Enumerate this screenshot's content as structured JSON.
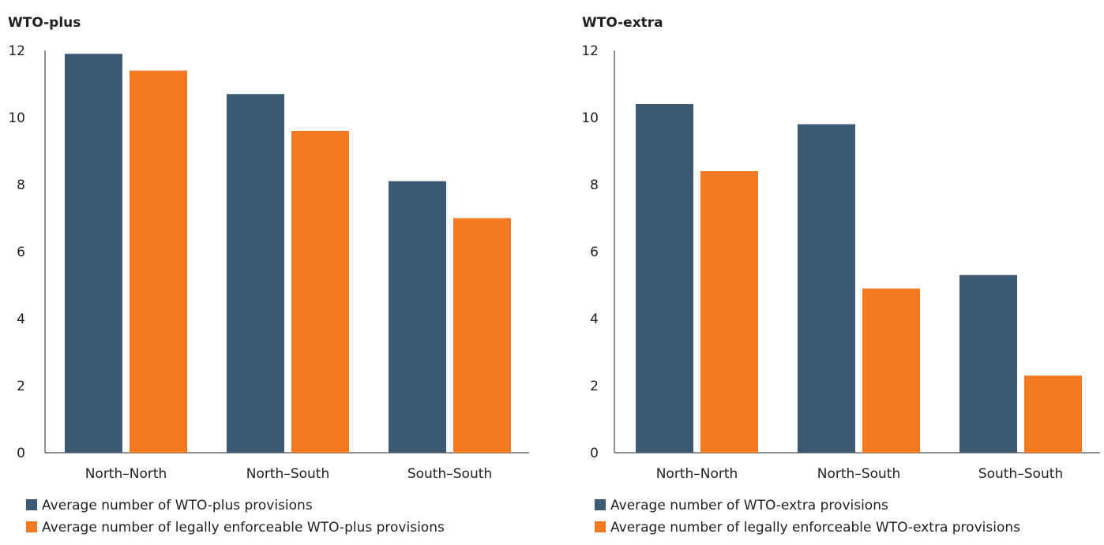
{
  "chart_data": [
    {
      "type": "bar",
      "title": "WTO-plus",
      "xlabel": "",
      "ylabel": "",
      "ylim": [
        0,
        12
      ],
      "yticks": [
        0,
        2,
        4,
        6,
        8,
        10,
        12
      ],
      "grid": false,
      "legend_position": "bottom-left",
      "categories": [
        "North–North",
        "North–South",
        "South–South"
      ],
      "series": [
        {
          "name": "Average number of WTO-plus provisions",
          "values": [
            11.9,
            10.7,
            8.1
          ],
          "color": "#3d5a75"
        },
        {
          "name": "Average number of legally enforceable WTO-plus provisions",
          "values": [
            11.4,
            9.6,
            7.0
          ],
          "color": "#f37a21"
        }
      ]
    },
    {
      "type": "bar",
      "title": "WTO-extra",
      "xlabel": "",
      "ylabel": "",
      "ylim": [
        0,
        12
      ],
      "yticks": [
        0,
        2,
        4,
        6,
        8,
        10,
        12
      ],
      "grid": false,
      "legend_position": "bottom-left",
      "categories": [
        "North–North",
        "North–South",
        "South–South"
      ],
      "series": [
        {
          "name": "Average number of WTO-extra provisions",
          "values": [
            10.4,
            9.8,
            5.3
          ],
          "color": "#3d5a75"
        },
        {
          "name": "Average number of legally enforceable WTO-extra provisions",
          "values": [
            8.4,
            4.9,
            2.3
          ],
          "color": "#f37a21"
        }
      ]
    }
  ]
}
